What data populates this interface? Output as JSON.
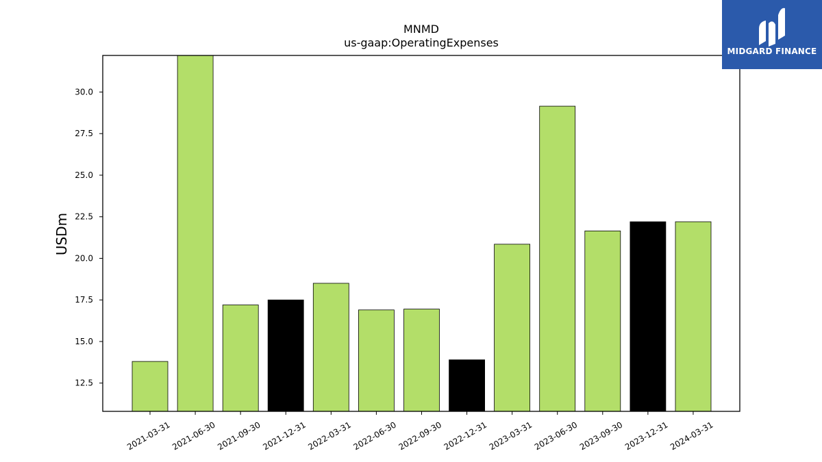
{
  "chart_data": {
    "type": "bar",
    "title": "MNMD",
    "subtitle": "us-gaap:OperatingExpenses",
    "ylabel": "USDm",
    "xlabel": "",
    "ylim": [
      10.8,
      32.2
    ],
    "yticks": [
      12.5,
      15.0,
      17.5,
      20.0,
      22.5,
      25.0,
      27.5,
      30.0
    ],
    "ytick_labels": [
      "12.5",
      "15.0",
      "17.5",
      "20.0",
      "22.5",
      "25.0",
      "27.5",
      "30.0"
    ],
    "categories": [
      "2021-03-31",
      "2021-06-30",
      "2021-09-30",
      "2021-12-31",
      "2022-03-31",
      "2022-06-30",
      "2022-09-30",
      "2022-12-31",
      "2023-03-31",
      "2023-06-30",
      "2023-09-30",
      "2023-12-31",
      "2024-03-31"
    ],
    "values": [
      13.8,
      32.2,
      17.2,
      17.5,
      18.5,
      16.9,
      16.95,
      13.9,
      20.85,
      29.15,
      21.65,
      22.2,
      22.2
    ],
    "bar_colors": [
      "#b3de69",
      "#b3de69",
      "#b3de69",
      "#000000",
      "#b3de69",
      "#b3de69",
      "#b3de69",
      "#000000",
      "#b3de69",
      "#b3de69",
      "#b3de69",
      "#000000",
      "#b3de69"
    ],
    "grid": false,
    "legend": "none"
  },
  "logo": {
    "text": "MIDGARD FINANCE",
    "background": "#2b5aab",
    "icon": "midgard-logo-icon"
  }
}
